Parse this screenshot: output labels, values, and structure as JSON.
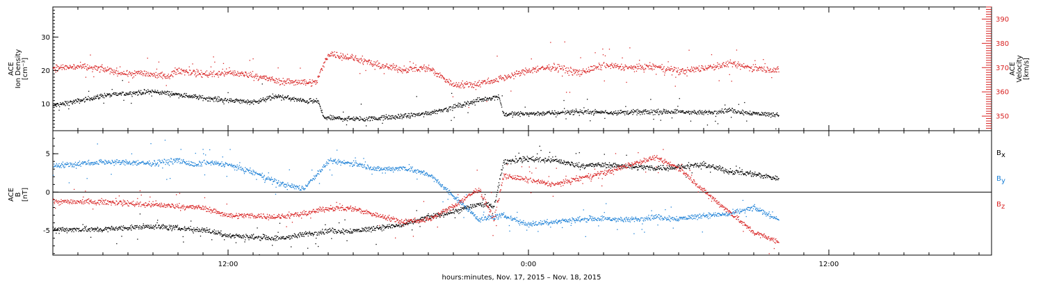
{
  "figure": {
    "xlabel": "hours:minutes, Nov. 17, 2015 – Nov. 18, 2015"
  },
  "chart_data": [
    {
      "type": "scatter",
      "panel": "ace-plasma",
      "ylabel_left": [
        "ACE",
        "Ion Density",
        "[cm⁻³]"
      ],
      "ylabel_right": [
        "ACE",
        "Velocity",
        "[km/s]"
      ],
      "x_unit": "hours from 00:00 Nov. 17, 2015",
      "xlim": [
        5.0,
        42.5
      ],
      "x_ticks": [
        {
          "t": 12,
          "label": "12:00"
        },
        {
          "t": 24,
          "label": "0:00"
        },
        {
          "t": 36,
          "label": "12:00"
        }
      ],
      "ylim_left": [
        2,
        39
      ],
      "yticks_left": [
        10,
        20,
        30
      ],
      "ylim_right": [
        344,
        395
      ],
      "yticks_right": [
        350,
        360,
        370,
        380,
        390
      ],
      "grid": false,
      "series": [
        {
          "axis": "left",
          "color": "#000000",
          "profile": [
            [
              5.0,
              9.6
            ],
            [
              6.0,
              11.0
            ],
            [
              7.0,
              12.6
            ],
            [
              8.0,
              13.3
            ],
            [
              9.0,
              13.8
            ],
            [
              10.0,
              12.9
            ],
            [
              11.0,
              11.9
            ],
            [
              12.0,
              11.2
            ],
            [
              13.0,
              10.7
            ],
            [
              14.0,
              12.4
            ],
            [
              15.0,
              11.0
            ],
            [
              15.6,
              10.8
            ],
            [
              15.8,
              6.0
            ],
            [
              17.0,
              5.6
            ],
            [
              18.0,
              5.8
            ],
            [
              19.0,
              6.4
            ],
            [
              20.0,
              7.4
            ],
            [
              21.0,
              9.2
            ],
            [
              22.0,
              11.2
            ],
            [
              22.8,
              12.4
            ],
            [
              23.0,
              7.0
            ],
            [
              25.0,
              7.4
            ],
            [
              26.0,
              7.8
            ],
            [
              27.0,
              7.6
            ],
            [
              28.0,
              7.6
            ],
            [
              29.0,
              7.7
            ],
            [
              30.0,
              7.8
            ],
            [
              31.0,
              7.4
            ],
            [
              32.0,
              8.2
            ],
            [
              33.0,
              7.3
            ],
            [
              34.0,
              6.8
            ]
          ]
        },
        {
          "axis": "right",
          "color": "#d82020",
          "profile": [
            [
              5.0,
              370.0
            ],
            [
              6.0,
              370.5
            ],
            [
              7.0,
              369.5
            ],
            [
              8.0,
              367.5
            ],
            [
              8.5,
              368.0
            ],
            [
              9.5,
              366.5
            ],
            [
              10.0,
              369.0
            ],
            [
              11.0,
              367.5
            ],
            [
              12.0,
              368.0
            ],
            [
              13.0,
              367.0
            ],
            [
              14.0,
              364.5
            ],
            [
              15.5,
              364.0
            ],
            [
              16.0,
              376.0
            ],
            [
              17.0,
              374.0
            ],
            [
              18.0,
              371.0
            ],
            [
              19.0,
              369.5
            ],
            [
              20.0,
              370.0
            ],
            [
              21.0,
              363.0
            ],
            [
              22.0,
              363.5
            ],
            [
              23.0,
              366.0
            ],
            [
              24.0,
              369.0
            ],
            [
              25.0,
              370.5
            ],
            [
              26.0,
              368.0
            ],
            [
              27.0,
              371.0
            ],
            [
              28.0,
              370.0
            ],
            [
              29.0,
              370.5
            ],
            [
              30.0,
              368.5
            ],
            [
              31.0,
              370.0
            ],
            [
              32.0,
              371.5
            ],
            [
              33.0,
              370.0
            ],
            [
              34.0,
              369.0
            ]
          ]
        }
      ]
    },
    {
      "type": "scatter",
      "panel": "ace-imf",
      "ylabel_left": [
        "ACE",
        "B",
        "[nT]"
      ],
      "x_unit": "hours from 00:00 Nov. 17, 2015",
      "xlim": [
        5.0,
        42.5
      ],
      "x_ticks": [
        {
          "t": 12,
          "label": "12:00"
        },
        {
          "t": 24,
          "label": "0:00"
        },
        {
          "t": 36,
          "label": "12:00"
        }
      ],
      "ylim_left": [
        -8.2,
        8.0
      ],
      "yticks_left": [
        -5,
        0,
        5
      ],
      "zero_line": true,
      "grid": false,
      "series": [
        {
          "name": "Bx",
          "legend_label": "B",
          "legend_sub": "x",
          "color": "#000000",
          "profile": [
            [
              5.0,
              -4.8
            ],
            [
              7.0,
              -4.8
            ],
            [
              9.0,
              -4.4
            ],
            [
              11.0,
              -4.9
            ],
            [
              12.0,
              -5.6
            ],
            [
              13.0,
              -5.8
            ],
            [
              14.0,
              -6.0
            ],
            [
              15.0,
              -5.5
            ],
            [
              16.0,
              -5.0
            ],
            [
              17.0,
              -5.0
            ],
            [
              18.0,
              -4.6
            ],
            [
              19.0,
              -4.2
            ],
            [
              20.0,
              -3.2
            ],
            [
              21.0,
              -2.5
            ],
            [
              22.0,
              -1.5
            ],
            [
              22.6,
              -1.8
            ],
            [
              23.0,
              4.0
            ],
            [
              24.0,
              4.4
            ],
            [
              25.0,
              4.2
            ],
            [
              26.0,
              3.5
            ],
            [
              27.0,
              3.6
            ],
            [
              28.0,
              3.4
            ],
            [
              29.0,
              3.2
            ],
            [
              30.0,
              3.3
            ],
            [
              31.0,
              3.6
            ],
            [
              32.0,
              2.8
            ],
            [
              33.0,
              2.4
            ],
            [
              34.0,
              1.8
            ]
          ]
        },
        {
          "name": "By",
          "legend_label": "B",
          "legend_sub": "y",
          "color": "#1a7fd6",
          "profile": [
            [
              5.0,
              3.5
            ],
            [
              7.0,
              4.0
            ],
            [
              9.0,
              3.8
            ],
            [
              10.0,
              4.2
            ],
            [
              10.7,
              3.5
            ],
            [
              11.0,
              3.9
            ],
            [
              12.0,
              3.6
            ],
            [
              13.0,
              2.6
            ],
            [
              14.0,
              1.2
            ],
            [
              15.0,
              0.5
            ],
            [
              16.0,
              4.0
            ],
            [
              17.0,
              3.8
            ],
            [
              18.0,
              3.0
            ],
            [
              19.0,
              3.2
            ],
            [
              20.0,
              2.4
            ],
            [
              21.0,
              -0.5
            ],
            [
              22.0,
              -3.5
            ],
            [
              23.0,
              -3.0
            ],
            [
              24.0,
              -4.2
            ],
            [
              25.0,
              -3.8
            ],
            [
              26.0,
              -3.5
            ],
            [
              27.0,
              -3.4
            ],
            [
              28.0,
              -3.6
            ],
            [
              29.0,
              -3.2
            ],
            [
              30.0,
              -3.4
            ],
            [
              31.0,
              -3.0
            ],
            [
              32.0,
              -2.8
            ],
            [
              33.0,
              -2.0
            ],
            [
              34.0,
              -3.5
            ]
          ]
        },
        {
          "name": "Bz",
          "legend_label": "B",
          "legend_sub": "z",
          "color": "#d82020",
          "profile": [
            [
              5.0,
              -1.2
            ],
            [
              7.0,
              -1.2
            ],
            [
              9.0,
              -1.6
            ],
            [
              11.0,
              -2.0
            ],
            [
              12.0,
              -3.0
            ],
            [
              13.0,
              -3.0
            ],
            [
              14.0,
              -3.2
            ],
            [
              15.0,
              -2.8
            ],
            [
              16.0,
              -2.0
            ],
            [
              17.0,
              -2.1
            ],
            [
              18.0,
              -3.0
            ],
            [
              19.0,
              -3.8
            ],
            [
              20.0,
              -3.5
            ],
            [
              21.0,
              -1.8
            ],
            [
              22.0,
              0.5
            ],
            [
              22.6,
              -3.5
            ],
            [
              23.0,
              2.2
            ],
            [
              24.0,
              1.6
            ],
            [
              25.0,
              1.0
            ],
            [
              26.0,
              1.8
            ],
            [
              27.0,
              2.5
            ],
            [
              28.0,
              3.6
            ],
            [
              29.0,
              4.5
            ],
            [
              30.0,
              3.2
            ],
            [
              31.0,
              0.2
            ],
            [
              32.0,
              -2.5
            ],
            [
              33.0,
              -5.2
            ],
            [
              34.0,
              -6.5
            ]
          ]
        }
      ]
    }
  ]
}
